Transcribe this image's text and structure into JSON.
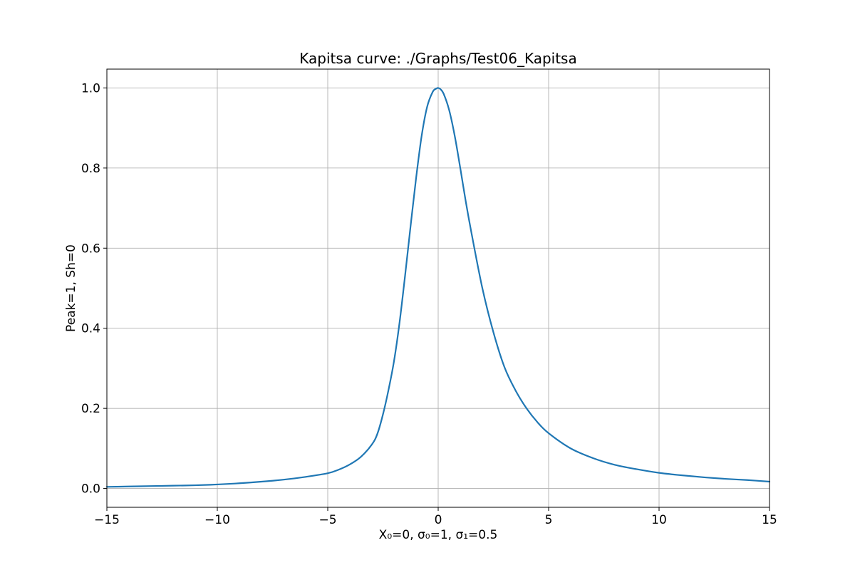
{
  "chart_data": {
    "type": "line",
    "title": "Kapitsa curve: ./Graphs/Test06_Kapitsa",
    "xlabel": "X₀=0, σ₀=1, σ₁=0.5",
    "ylabel": "Peak=1, Sh=0",
    "xlim": [
      -15,
      15
    ],
    "ylim": [
      -0.047,
      1.047
    ],
    "xticks": [
      -15,
      -10,
      -5,
      0,
      5,
      10,
      15
    ],
    "xtick_labels": [
      "−15",
      "−10",
      "−5",
      "0",
      "5",
      "10",
      "15"
    ],
    "yticks": [
      0.0,
      0.2,
      0.4,
      0.6,
      0.8,
      1.0
    ],
    "ytick_labels": [
      "0.0",
      "0.2",
      "0.4",
      "0.6",
      "0.8",
      "1.0"
    ],
    "grid": true,
    "colors": {
      "series": "#1f77b4"
    },
    "series": [
      {
        "x": [
          -15,
          -14,
          -13,
          -12,
          -11,
          -10,
          -9,
          -8,
          -7,
          -6,
          -5,
          -4.5,
          -4,
          -3.5,
          -3,
          -2.75,
          -2.5,
          -2.25,
          -2,
          -1.75,
          -1.5,
          -1.25,
          -1,
          -0.75,
          -0.5,
          -0.25,
          -0.1,
          0,
          0.1,
          0.25,
          0.5,
          0.75,
          1,
          1.25,
          1.5,
          2,
          2.5,
          3,
          3.5,
          4,
          4.5,
          5,
          6,
          7,
          8,
          9,
          10,
          11,
          12,
          13,
          14,
          15
        ],
        "y": [
          0.004,
          0.005,
          0.006,
          0.007,
          0.008,
          0.01,
          0.013,
          0.017,
          0.022,
          0.029,
          0.038,
          0.047,
          0.06,
          0.079,
          0.11,
          0.137,
          0.185,
          0.246,
          0.318,
          0.414,
          0.531,
          0.655,
          0.775,
          0.88,
          0.953,
          0.99,
          0.998,
          1.0,
          0.997,
          0.985,
          0.944,
          0.88,
          0.8,
          0.716,
          0.64,
          0.5,
          0.39,
          0.303,
          0.245,
          0.2,
          0.165,
          0.138,
          0.1,
          0.076,
          0.059,
          0.048,
          0.039,
          0.033,
          0.028,
          0.024,
          0.021,
          0.017
        ]
      }
    ]
  }
}
